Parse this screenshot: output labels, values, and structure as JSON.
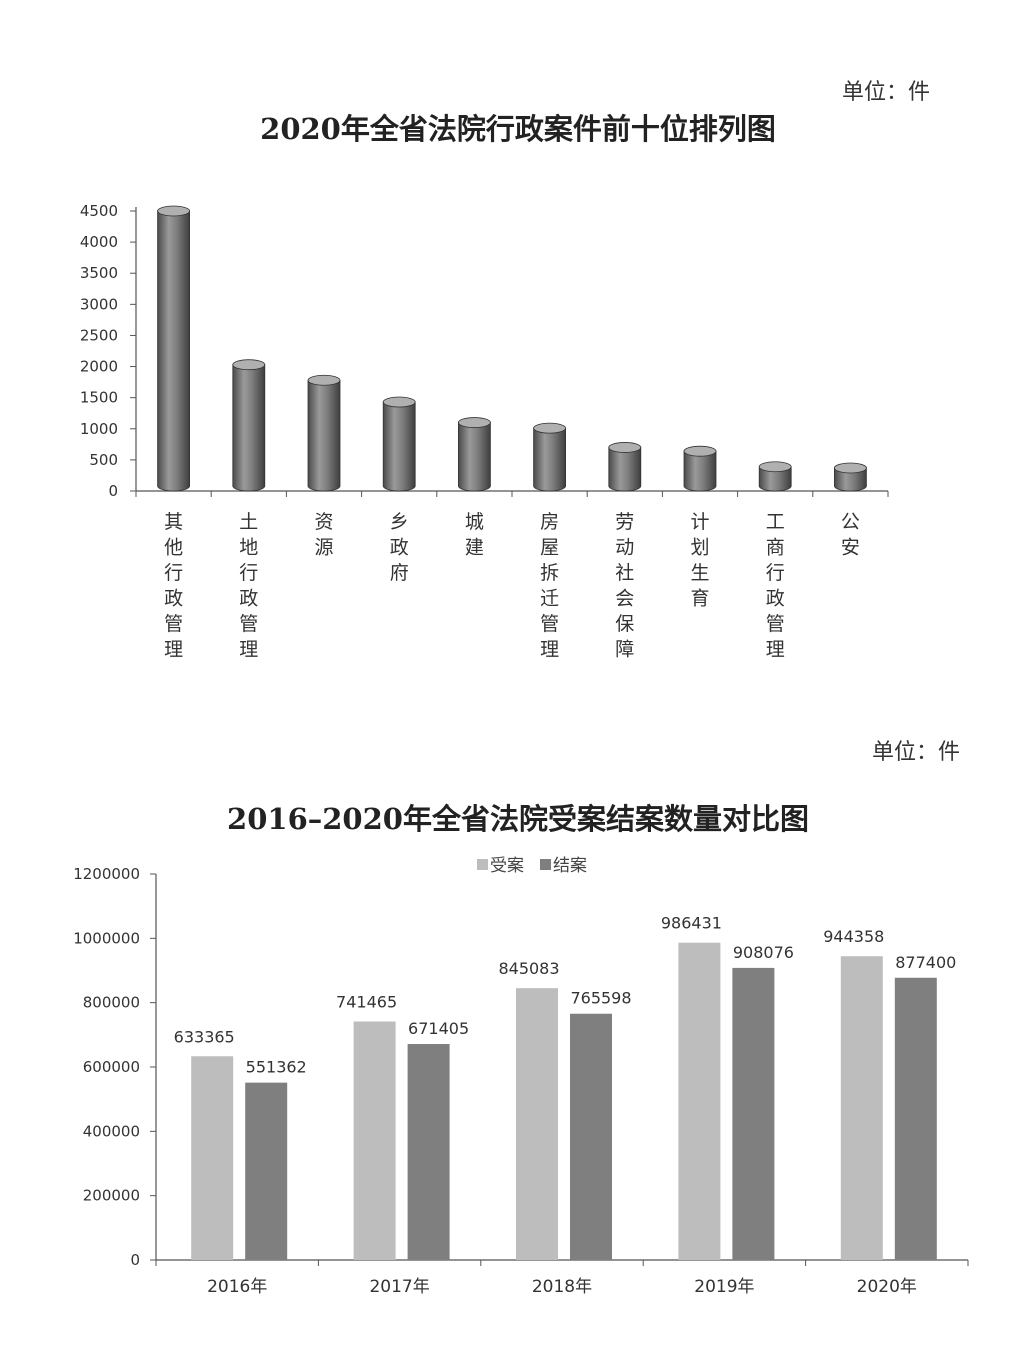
{
  "chart1": {
    "unit": "单位：件",
    "title": "2020年全省法院行政案件前十位排列图",
    "chart_data": {
      "type": "bar",
      "title": "2020年全省法院行政案件前十位排列图",
      "unit": "单位：件",
      "categories": [
        "其他行政管理",
        "土地行政管理",
        "资源",
        "乡政府",
        "城建",
        "房屋拆迁管理",
        "劳动社会保障",
        "计划生育",
        "工商行政管理",
        "公安"
      ],
      "values": [
        4500,
        2030,
        1780,
        1430,
        1100,
        1010,
        700,
        640,
        390,
        370
      ],
      "ylim": [
        0,
        4500
      ],
      "yticks": [
        0,
        500,
        1000,
        1500,
        2000,
        2500,
        3000,
        3500,
        4000,
        4500
      ],
      "xlabel": "",
      "ylabel": "",
      "grid": false,
      "bar_color": "#7a7a7a"
    }
  },
  "chart2": {
    "unit": "单位：件",
    "title": "2016–2020年全省法院受案结案数量对比图",
    "chart_data": {
      "type": "bar",
      "title": "2016–2020年全省法院受案结案数量对比图",
      "unit": "单位：件",
      "categories": [
        "2016年",
        "2017年",
        "2018年",
        "2019年",
        "2020年"
      ],
      "series": [
        {
          "name": "受案",
          "values": [
            633365,
            741465,
            845083,
            986431,
            944358
          ],
          "color": "#bdbdbd"
        },
        {
          "name": "结案",
          "values": [
            551362,
            671405,
            765598,
            908076,
            877400
          ],
          "color": "#7f7f7f"
        }
      ],
      "ylim": [
        0,
        1200000
      ],
      "yticks": [
        0,
        200000,
        400000,
        600000,
        800000,
        1000000,
        1200000
      ],
      "legend": "top-center",
      "grid": false,
      "xlabel": "",
      "ylabel": ""
    }
  }
}
